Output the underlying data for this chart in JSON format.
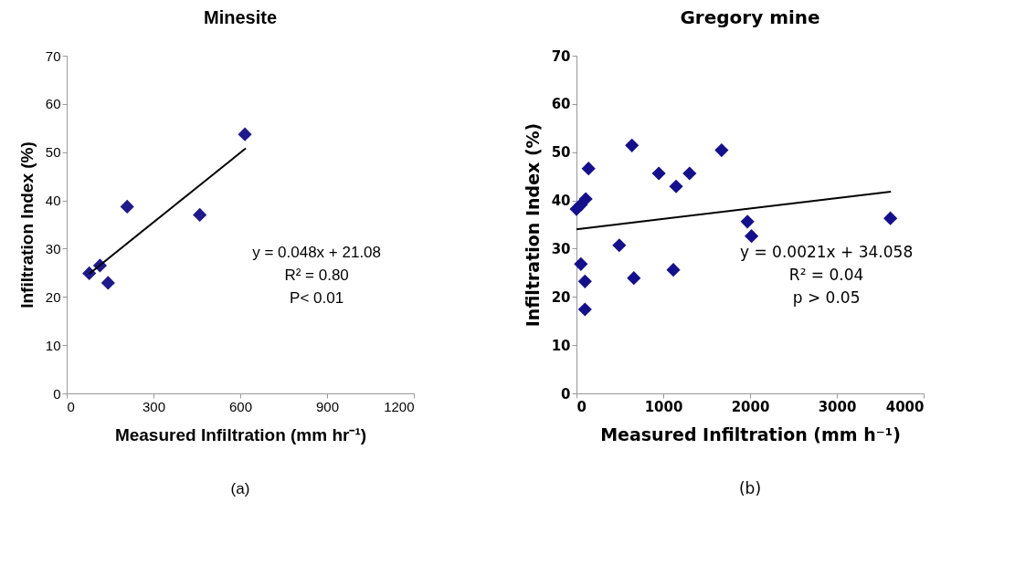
{
  "chart_data": [
    {
      "type": "scatter",
      "title": "Minesite",
      "xlabel": "Measured Infiltration (mm hr⁻¹)",
      "ylabel": "Infiltration Index (%)",
      "marker": "diamond",
      "series": [
        {
          "color": "#1f1a8c",
          "x": [
            78,
            115,
            143,
            209,
            460,
            616
          ],
          "values": [
            24.9,
            26.5,
            22.9,
            38.7,
            37.0,
            53.7
          ]
        },
        {
          "type": "line",
          "color": "#000000",
          "marker": "none",
          "line_style": "solid",
          "x": [
            78,
            619
          ],
          "values": [
            24.8,
            50.8
          ]
        }
      ],
      "xlim": [
        0,
        1200
      ],
      "xticks": [
        0,
        300,
        600,
        900,
        1200
      ],
      "ylim": [
        0,
        70
      ],
      "yticks": [
        0,
        10,
        20,
        30,
        40,
        50,
        60,
        70
      ],
      "annotations": [
        "y = 0.048x + 21.08",
        "R² = 0.80",
        "P< 0.01",
        "(a)"
      ]
    },
    {
      "type": "scatter",
      "title": "Gregory mine",
      "xlabel": "Measured Infiltration (mm h⁻¹)",
      "ylabel": "Infiltration Index (%)",
      "marker": "diamond",
      "series": [
        {
          "color": "#14108c",
          "x": [
            0,
            51,
            107,
            51,
            98,
            98,
            139,
            493,
            639,
            661,
            949,
            1148,
            1116,
            1303,
            1672,
            1970,
            2017,
            3617
          ],
          "values": [
            38.2,
            39.1,
            40.3,
            26.8,
            23.2,
            17.4,
            46.6,
            30.7,
            51.4,
            23.9,
            45.6,
            42.9,
            25.6,
            45.6,
            50.4,
            35.6,
            32.6,
            36.3
          ]
        },
        {
          "type": "line",
          "color": "#000000",
          "marker": "none",
          "line_style": "solid",
          "x": [
            0,
            3623
          ],
          "values": [
            34.0,
            41.8
          ]
        }
      ],
      "xlim": [
        0,
        4000
      ],
      "xticks": [
        0,
        1000,
        2000,
        3000,
        4000
      ],
      "ylim": [
        0,
        70
      ],
      "yticks": [
        0,
        10,
        20,
        30,
        40,
        50,
        60,
        70
      ],
      "annotations": [
        "y = 0.0021x + 34.058",
        "R² = 0.04",
        "p > 0.05",
        "(b)"
      ]
    }
  ]
}
